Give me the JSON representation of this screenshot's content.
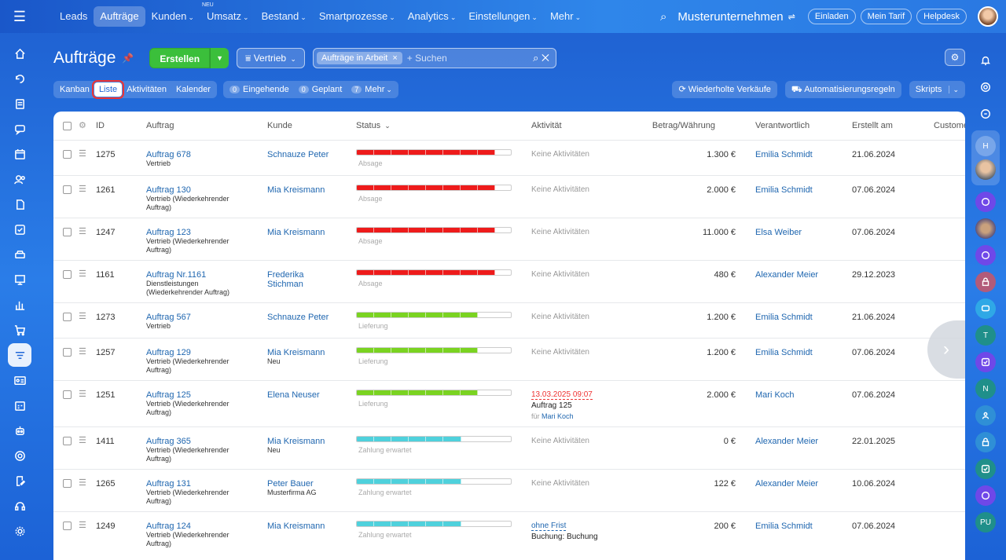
{
  "topnav": {
    "items": [
      {
        "label": "Leads",
        "active": false,
        "caret": false
      },
      {
        "label": "Aufträge",
        "active": true,
        "caret": false
      },
      {
        "label": "Kunden",
        "active": false,
        "caret": true
      },
      {
        "label": "Umsatz",
        "active": false,
        "caret": true,
        "badge": "NEU"
      },
      {
        "label": "Bestand",
        "active": false,
        "caret": true
      },
      {
        "label": "Smartprozesse",
        "active": false,
        "caret": true
      },
      {
        "label": "Analytics",
        "active": false,
        "caret": true
      },
      {
        "label": "Einstellungen",
        "active": false,
        "caret": true
      },
      {
        "label": "Mehr",
        "active": false,
        "caret": true
      }
    ],
    "company": "Musterunternehmen",
    "buttons": {
      "invite": "Einladen",
      "tariff": "Mein Tarif",
      "helpdesk": "Helpdesk"
    }
  },
  "header": {
    "title": "Aufträge",
    "create_label": "Erstellen",
    "funnel_label": "Vertrieb",
    "search_tag": "Aufträge in Arbeit",
    "search_placeholder": "+ Suchen"
  },
  "views": {
    "tabs": [
      "Kanban",
      "Liste",
      "Aktivitäten",
      "Kalender"
    ],
    "active_tab": "Liste",
    "counters": [
      {
        "count": "0",
        "label": "Eingehende"
      },
      {
        "count": "0",
        "label": "Geplant"
      },
      {
        "count": "7",
        "label": "Mehr"
      }
    ],
    "right_buttons": {
      "repeat": "Wiederholte Verkäufe",
      "automation": "Automatisierungsregeln",
      "scripts": "Skripts"
    }
  },
  "table": {
    "columns": [
      "ID",
      "Auftrag",
      "Kunde",
      "Status",
      "Aktivität",
      "Betrag/Währung",
      "Verantwortlich",
      "Erstellt am",
      "Custome"
    ],
    "stage_colors": {
      "red": "#ee1b1b",
      "green": "#7ad321",
      "cyan": "#4fd1dc"
    },
    "rows": [
      {
        "id": "1275",
        "deal": "Auftrag 678",
        "deal_sub": "Vertrieb",
        "client": "Schnauze Peter",
        "client_sub": "",
        "stage": "Absage",
        "progress": 0.89,
        "color": "red",
        "activity": "Keine Aktivitäten",
        "amount": "1.300 €",
        "owner": "Emilia Schmidt",
        "created": "21.06.2024"
      },
      {
        "id": "1261",
        "deal": "Auftrag 130",
        "deal_sub": "Vertrieb (Wiederkehrender Auftrag)",
        "client": "Mia Kreismann",
        "client_sub": "",
        "stage": "Absage",
        "progress": 0.89,
        "color": "red",
        "activity": "Keine Aktivitäten",
        "amount": "2.000 €",
        "owner": "Emilia Schmidt",
        "created": "07.06.2024"
      },
      {
        "id": "1247",
        "deal": "Auftrag 123",
        "deal_sub": "Vertrieb (Wiederkehrender Auftrag)",
        "client": "Mia Kreismann",
        "client_sub": "",
        "stage": "Absage",
        "progress": 0.89,
        "color": "red",
        "activity": "Keine Aktivitäten",
        "amount": "11.000 €",
        "owner": "Elsa Weiber",
        "created": "07.06.2024"
      },
      {
        "id": "1161",
        "deal": "Auftrag Nr.1161",
        "deal_sub": "Dienstleistungen (Wiederkehrender Auftrag)",
        "client": "Frederika Stichman",
        "client_sub": "",
        "stage": "Absage",
        "progress": 0.89,
        "color": "red",
        "activity": "Keine Aktivitäten",
        "amount": "480 €",
        "owner": "Alexander Meier",
        "created": "29.12.2023"
      },
      {
        "id": "1273",
        "deal": "Auftrag 567",
        "deal_sub": "Vertrieb",
        "client": "Schnauze Peter",
        "client_sub": "",
        "stage": "Lieferung",
        "progress": 0.78,
        "color": "green",
        "activity": "Keine Aktivitäten",
        "amount": "1.200 €",
        "owner": "Emilia Schmidt",
        "created": "21.06.2024"
      },
      {
        "id": "1257",
        "deal": "Auftrag 129",
        "deal_sub": "Vertrieb (Wiederkehrender Auftrag)",
        "client": "Mia Kreismann",
        "client_sub": "Neu",
        "stage": "Lieferung",
        "progress": 0.78,
        "color": "green",
        "activity": "Keine Aktivitäten",
        "amount": "1.200 €",
        "owner": "Emilia Schmidt",
        "created": "07.06.2024"
      },
      {
        "id": "1251",
        "deal": "Auftrag 125",
        "deal_sub": "Vertrieb (Wiederkehrender Auftrag)",
        "client": "Elena Neuser",
        "client_sub": "",
        "stage": "Lieferung",
        "progress": 0.78,
        "color": "green",
        "activity": "",
        "activity_date": "13.03.2025 09:07",
        "activity_title": "Auftrag 125",
        "activity_for": "für",
        "activity_person": "Mari Koch",
        "amount": "2.000 €",
        "owner": "Mari Koch",
        "created": "07.06.2024"
      },
      {
        "id": "1411",
        "deal": "Auftrag 365",
        "deal_sub": "Vertrieb (Wiederkehrender Auftrag)",
        "client": "Mia Kreismann",
        "client_sub": "Neu",
        "stage": "Zahlung erwartet",
        "progress": 0.67,
        "color": "cyan",
        "activity": "Keine Aktivitäten",
        "amount": "0 €",
        "owner": "Alexander Meier",
        "created": "22.01.2025"
      },
      {
        "id": "1265",
        "deal": "Auftrag 131",
        "deal_sub": "Vertrieb (Wiederkehrender Auftrag)",
        "client": "Peter Bauer",
        "client_sub": "Musterfirma AG",
        "stage": "Zahlung erwartet",
        "progress": 0.67,
        "color": "cyan",
        "activity": "Keine Aktivitäten",
        "amount": "122 €",
        "owner": "Alexander Meier",
        "created": "10.06.2024"
      },
      {
        "id": "1249",
        "deal": "Auftrag 124",
        "deal_sub": "Vertrieb (Wiederkehrender Auftrag)",
        "client": "Mia Kreismann",
        "client_sub": "",
        "stage": "Zahlung erwartet",
        "progress": 0.67,
        "color": "cyan",
        "activity": "",
        "activity_date": "ohne Frist",
        "activity_title": "Buchung: Buchung",
        "amount": "200 €",
        "owner": "Emilia Schmidt",
        "created": "07.06.2024"
      }
    ]
  },
  "rightbar": {
    "initials": [
      "H",
      "T",
      "N",
      "PU"
    ]
  }
}
